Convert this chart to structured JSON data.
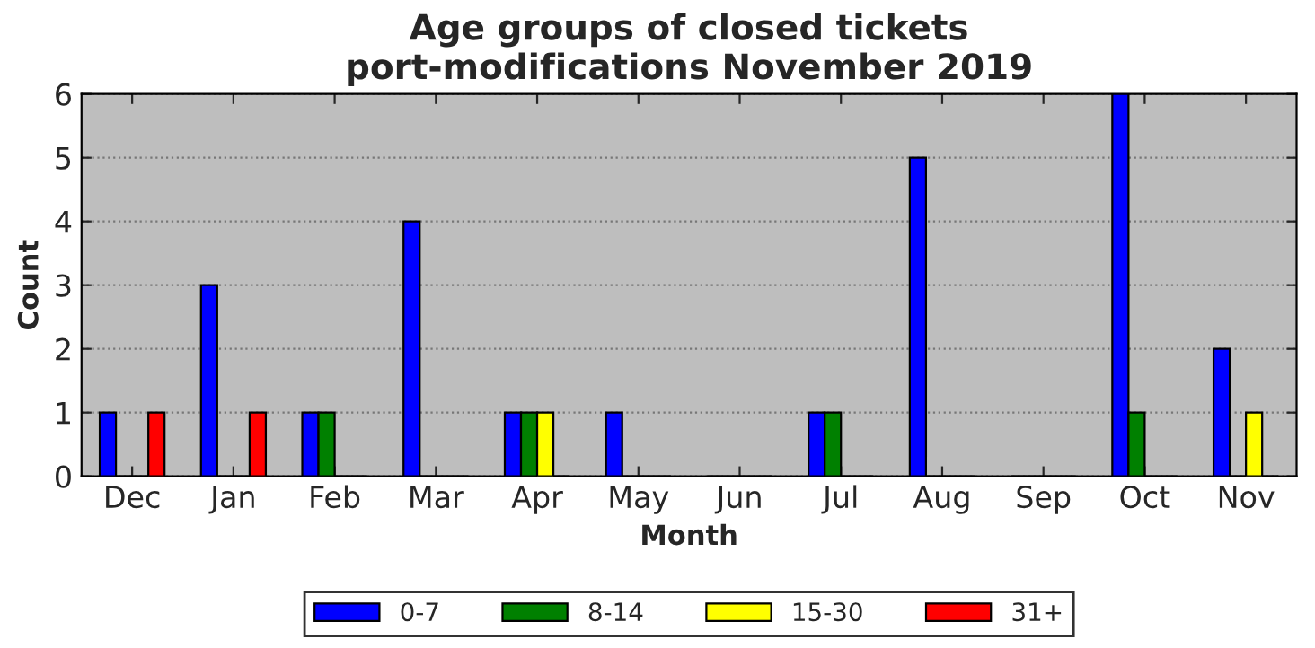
{
  "chart_data": {
    "type": "bar",
    "title": "Age groups of closed tickets\nport-modifications November 2019",
    "xlabel": "Month",
    "ylabel": "Count",
    "categories": [
      "Dec",
      "Jan",
      "Feb",
      "Mar",
      "Apr",
      "May",
      "Jun",
      "Jul",
      "Aug",
      "Sep",
      "Oct",
      "Nov"
    ],
    "series": [
      {
        "name": "0-7",
        "color": "#0000ff",
        "values": [
          1,
          3,
          1,
          4,
          1,
          1,
          0,
          1,
          5,
          0,
          6,
          2
        ]
      },
      {
        "name": "8-14",
        "color": "#008000",
        "values": [
          0,
          0,
          1,
          0,
          1,
          0,
          0,
          1,
          0,
          0,
          1,
          0
        ]
      },
      {
        "name": "15-30",
        "color": "#ffff00",
        "values": [
          0,
          0,
          0,
          0,
          1,
          0,
          0,
          0,
          0,
          0,
          0,
          1
        ]
      },
      {
        "name": "31+",
        "color": "#ff0000",
        "values": [
          1,
          1,
          0,
          0,
          0,
          0,
          0,
          0,
          0,
          0,
          0,
          0
        ]
      }
    ],
    "ylim": [
      0,
      6
    ],
    "yticks": [
      0,
      1,
      2,
      3,
      4,
      5,
      6
    ],
    "grid": "y",
    "legend": "bottom"
  }
}
